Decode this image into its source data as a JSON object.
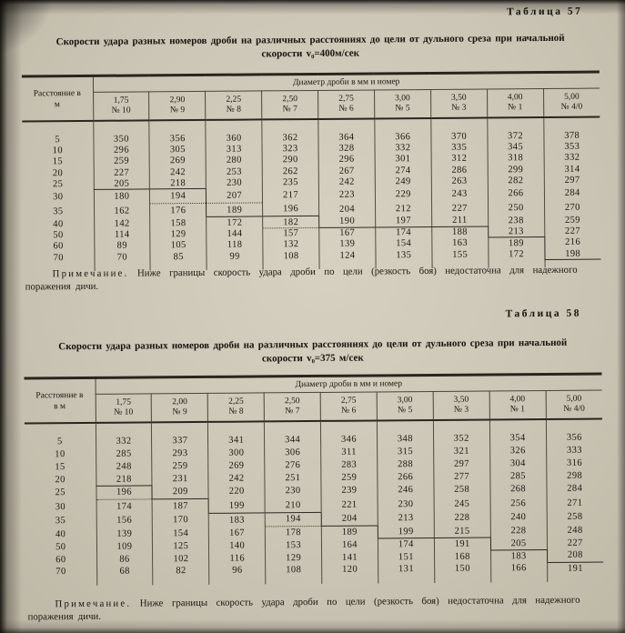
{
  "tables": [
    {
      "label": "Таблица 57",
      "title_line1": "Скорости удара разных номеров дроби на различных расстояниях до цели от дульного среза при начальной",
      "title_line2": "скорости v₀=400м/сек",
      "stub_line1": "Расстояние в",
      "stub_line2": "м",
      "group_header": "Диаметр дроби в мм и номер",
      "columns": [
        {
          "d": "1,75",
          "n": "№ 10"
        },
        {
          "d": "2,90",
          "n": "№ 9"
        },
        {
          "d": "2,25",
          "n": "№ 8"
        },
        {
          "d": "2,50",
          "n": "№ 7"
        },
        {
          "d": "2,75",
          "n": "№ 6"
        },
        {
          "d": "3,00",
          "n": "№ 5"
        },
        {
          "d": "3,50",
          "n": "№ 3"
        },
        {
          "d": "4,00",
          "n": "№ 1"
        },
        {
          "d": "5,00",
          "n": "№ 4/0"
        }
      ],
      "rows": [
        {
          "dist": "5",
          "v": [
            350,
            356,
            360,
            362,
            364,
            366,
            370,
            372,
            378
          ]
        },
        {
          "dist": "10",
          "v": [
            296,
            305,
            313,
            323,
            328,
            332,
            335,
            345,
            353
          ]
        },
        {
          "dist": "15",
          "v": [
            259,
            269,
            280,
            290,
            296,
            301,
            312,
            318,
            332
          ]
        },
        {
          "dist": "20",
          "v": [
            227,
            242,
            253,
            262,
            267,
            274,
            286,
            299,
            314
          ]
        },
        {
          "dist": "25",
          "v": [
            205,
            218,
            230,
            235,
            242,
            249,
            263,
            282,
            297
          ]
        },
        {
          "dist": "30",
          "v": [
            180,
            194,
            207,
            217,
            223,
            229,
            243,
            266,
            284
          ]
        },
        {
          "dist": "35",
          "v": [
            162,
            176,
            189,
            196,
            204,
            212,
            227,
            250,
            270
          ]
        },
        {
          "dist": "40",
          "v": [
            142,
            158,
            172,
            182,
            190,
            197,
            211,
            238,
            259
          ]
        },
        {
          "dist": "50",
          "v": [
            114,
            129,
            144,
            157,
            167,
            174,
            188,
            213,
            227
          ]
        },
        {
          "dist": "60",
          "v": [
            89,
            105,
            118,
            132,
            139,
            154,
            163,
            189,
            216
          ]
        },
        {
          "dist": "70",
          "v": [
            70,
            85,
            99,
            108,
            124,
            135,
            155,
            172,
            198
          ]
        }
      ],
      "boundary_solid": [
        [
          4,
          0
        ],
        [
          4,
          1
        ],
        [
          6,
          2
        ],
        [
          6,
          3
        ],
        [
          7,
          4
        ],
        [
          7,
          5
        ],
        [
          7,
          6
        ],
        [
          8,
          7
        ],
        [
          10,
          8
        ]
      ],
      "boundary_dotted": [
        [
          5,
          1
        ],
        [
          5,
          2
        ],
        [
          7,
          3
        ]
      ],
      "boundary_vertical": [
        [
          5,
          1
        ],
        [
          6,
          1
        ],
        [
          7,
          3
        ],
        [
          8,
          6
        ],
        [
          9,
          7
        ],
        [
          10,
          7
        ]
      ],
      "note_label": "Примечание.",
      "note_text": "Ниже границы скорость удара дроби по цели (резкость боя) недостаточна для надежного поражения дичи."
    },
    {
      "label": "Таблица 58",
      "title_line1": "Скорости удара разных номеров дроби на различных расстояниях до цели от дульного среза при начальной",
      "title_line2": "скорости v₀=375 м/сек",
      "stub_line1": "Расстояние в",
      "stub_line2": "в м",
      "group_header": "Диаметр дроби в мм и номер",
      "columns": [
        {
          "d": "1,75",
          "n": "№ 10"
        },
        {
          "d": "2,00",
          "n": "№ 9"
        },
        {
          "d": "2,25",
          "n": "№ 8"
        },
        {
          "d": "2,50",
          "n": "№ 7"
        },
        {
          "d": "2,75",
          "n": "№ 6"
        },
        {
          "d": "3,00",
          "n": "№ 5"
        },
        {
          "d": "3,50",
          "n": "№ 3"
        },
        {
          "d": "4,00",
          "n": "№ 1"
        },
        {
          "d": "5,00",
          "n": "№ 4/0"
        }
      ],
      "rows": [
        {
          "dist": "5",
          "v": [
            332,
            337,
            341,
            344,
            346,
            348,
            352,
            354,
            356
          ]
        },
        {
          "dist": "10",
          "v": [
            285,
            293,
            300,
            306,
            311,
            315,
            321,
            326,
            333
          ]
        },
        {
          "dist": "15",
          "v": [
            248,
            259,
            269,
            276,
            283,
            288,
            297,
            304,
            316
          ]
        },
        {
          "dist": "20",
          "v": [
            218,
            231,
            242,
            251,
            259,
            266,
            277,
            285,
            298
          ]
        },
        {
          "dist": "25",
          "v": [
            196,
            209,
            220,
            230,
            239,
            246,
            258,
            268,
            284
          ]
        },
        {
          "dist": "30",
          "v": [
            174,
            187,
            199,
            210,
            221,
            230,
            245,
            256,
            271
          ]
        },
        {
          "dist": "35",
          "v": [
            156,
            170,
            183,
            194,
            204,
            213,
            228,
            240,
            258
          ]
        },
        {
          "dist": "40",
          "v": [
            139,
            154,
            167,
            178,
            189,
            199,
            215,
            228,
            248
          ]
        },
        {
          "dist": "50",
          "v": [
            109,
            125,
            140,
            153,
            164,
            174,
            191,
            205,
            227
          ]
        },
        {
          "dist": "60",
          "v": [
            86,
            102,
            116,
            129,
            141,
            151,
            168,
            183,
            208
          ]
        },
        {
          "dist": "70",
          "v": [
            68,
            82,
            96,
            108,
            120,
            131,
            150,
            166,
            191
          ]
        }
      ],
      "boundary_solid": [
        [
          3,
          0
        ],
        [
          4,
          1
        ],
        [
          5,
          2
        ],
        [
          5,
          3
        ],
        [
          6,
          4
        ],
        [
          7,
          5
        ],
        [
          7,
          6
        ],
        [
          8,
          7
        ],
        [
          9,
          8
        ]
      ],
      "boundary_dotted": [
        [
          4,
          0
        ],
        [
          6,
          3
        ]
      ],
      "boundary_vertical": [
        [
          4,
          0
        ],
        [
          5,
          1
        ],
        [
          6,
          3
        ],
        [
          7,
          4
        ],
        [
          8,
          6
        ],
        [
          9,
          7
        ]
      ],
      "note_label": "Примечание.",
      "note_text": "Ниже границы скорость удара дроби по цели (резкость боя) недостаточна для надежного поражения дичи."
    }
  ]
}
